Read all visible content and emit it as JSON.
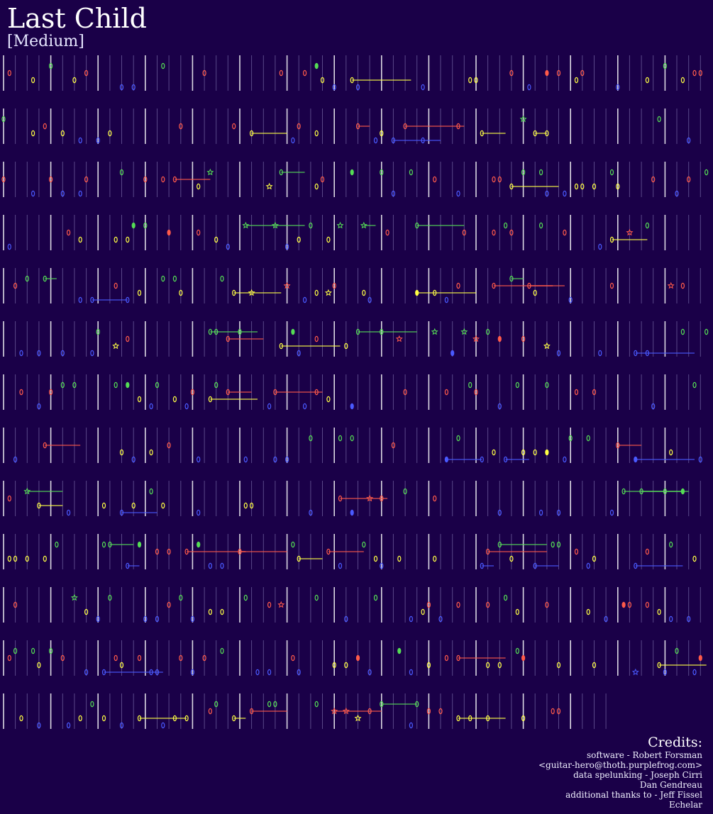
{
  "song": {
    "title": "Last Child",
    "difficulty": "[Medium]"
  },
  "colors": {
    "background": "#1a0048",
    "green": "#55dd55",
    "red": "#ff5a4a",
    "yellow": "#ffff44",
    "blue": "#4a5aff",
    "orange": "#ff9a2a",
    "measure_line": "#ffffff",
    "beat_line": "#6a5a9a"
  },
  "chart_meta": {
    "type": "note-chart",
    "rows": 13,
    "lanes": [
      "green",
      "red",
      "yellow",
      "blue"
    ]
  },
  "credits": {
    "heading": "Credits:",
    "lines": [
      "software - Robert Forsman",
      "<guitar-hero@thoth.purplefrog.com>",
      "data spelunking - Joseph Cirri",
      "Dan Gendreau",
      "additional thanks to - Jeff Fissel",
      "Echelar"
    ]
  }
}
